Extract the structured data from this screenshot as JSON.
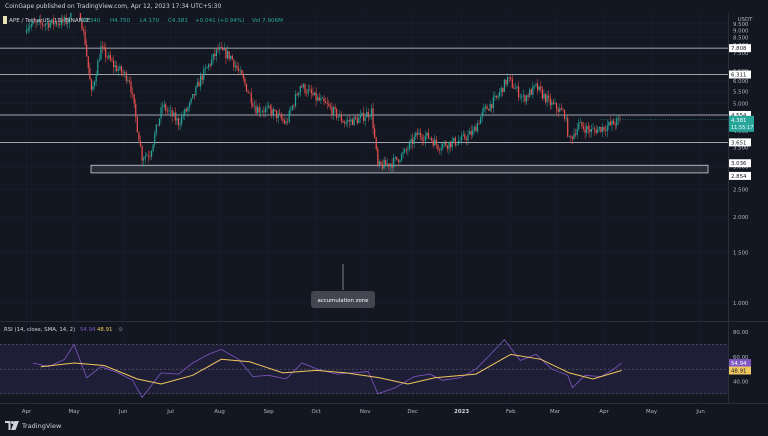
{
  "published_line": "CoinGape published on TradingView.com, Apr 12, 2023 17:34 UTC+5:30",
  "footer_brand": "TradingView",
  "colors": {
    "background": "#131722",
    "up": "#26a69a",
    "down": "#ef5350",
    "level_line": "#d1d4dc",
    "rsi_line": "#7e57c2",
    "rsi_sma": "#f0c75e",
    "rsi_band": "#2a2548"
  },
  "chart_data": [
    {
      "type": "candlestick",
      "symbol_line": {
        "symbol": "APE / TetherUS, 1D, BINANCE",
        "o": "O4.340",
        "h": "H4.750",
        "l": "L4.170",
        "c": "C4.381",
        "chg": "+0.041 (+0.94%)",
        "vol": "Vol 7.906M"
      },
      "currency_label": "USDT",
      "y_scale": "log",
      "ylim": [
        0.9,
        10.2
      ],
      "yticks": [
        "9.500",
        "9.000",
        "8.500",
        "8.000",
        "7.500",
        "6.500",
        "6.000",
        "5.500",
        "5.000",
        "4.500",
        "4.000",
        "3.500",
        "3.000",
        "2.500",
        "2.000",
        "1.500",
        "1.000"
      ],
      "x_axis": [
        "Apr",
        "May",
        "Jun",
        "Jul",
        "Aug",
        "Sep",
        "Oct",
        "Nov",
        "Dec",
        "2023",
        "Feb",
        "Mar",
        "Apr",
        "May",
        "Jun"
      ],
      "horizontal_levels": [
        {
          "label": "7.808",
          "value": 7.808
        },
        {
          "label": "6.311",
          "value": 6.311
        },
        {
          "label": "4.554",
          "value": 4.554
        },
        {
          "label": "3.651",
          "value": 3.651
        }
      ],
      "zone": {
        "top": 3.036,
        "bottom": 2.854,
        "labels": [
          "3.036",
          "2.854"
        ]
      },
      "last_price": {
        "label": "4.381",
        "sub": "11:55:17",
        "value": 4.381
      },
      "annotation": "accumulation zone",
      "closes": [
        {
          "date": "2022-04-01",
          "close": 9.4
        },
        {
          "date": "2022-04-28",
          "close": 9.7
        },
        {
          "date": "2022-04-30",
          "close": 14.5
        },
        {
          "date": "2022-05-08",
          "close": 8.2
        },
        {
          "date": "2022-05-12",
          "close": 5.4
        },
        {
          "date": "2022-05-18",
          "close": 7.8
        },
        {
          "date": "2022-05-26",
          "close": 6.8
        },
        {
          "date": "2022-06-05",
          "close": 6.1
        },
        {
          "date": "2022-06-13",
          "close": 3.25
        },
        {
          "date": "2022-06-18",
          "close": 3.35
        },
        {
          "date": "2022-06-26",
          "close": 4.9
        },
        {
          "date": "2022-07-06",
          "close": 4.3
        },
        {
          "date": "2022-07-13",
          "close": 4.9
        },
        {
          "date": "2022-07-20",
          "close": 6.1
        },
        {
          "date": "2022-07-31",
          "close": 7.7
        },
        {
          "date": "2022-08-08",
          "close": 7.3
        },
        {
          "date": "2022-08-16",
          "close": 6.0
        },
        {
          "date": "2022-08-24",
          "close": 4.8
        },
        {
          "date": "2022-09-03",
          "close": 4.7
        },
        {
          "date": "2022-09-12",
          "close": 4.25
        },
        {
          "date": "2022-09-21",
          "close": 5.8
        },
        {
          "date": "2022-10-01",
          "close": 5.2
        },
        {
          "date": "2022-10-08",
          "close": 4.9
        },
        {
          "date": "2022-10-19",
          "close": 4.3
        },
        {
          "date": "2022-10-28",
          "close": 4.4
        },
        {
          "date": "2022-11-05",
          "close": 4.7
        },
        {
          "date": "2022-11-09",
          "close": 3.0
        },
        {
          "date": "2022-11-18",
          "close": 3.1
        },
        {
          "date": "2022-11-26",
          "close": 3.35
        },
        {
          "date": "2022-12-04",
          "close": 3.9
        },
        {
          "date": "2022-12-12",
          "close": 3.8
        },
        {
          "date": "2022-12-17",
          "close": 3.55
        },
        {
          "date": "2022-12-31",
          "close": 3.7
        },
        {
          "date": "2023-01-08",
          "close": 3.95
        },
        {
          "date": "2023-01-15",
          "close": 4.7
        },
        {
          "date": "2023-01-23",
          "close": 5.2
        },
        {
          "date": "2023-01-30",
          "close": 6.1
        },
        {
          "date": "2023-02-09",
          "close": 5.2
        },
        {
          "date": "2023-02-17",
          "close": 5.7
        },
        {
          "date": "2023-02-26",
          "close": 5.0
        },
        {
          "date": "2023-03-07",
          "close": 4.6
        },
        {
          "date": "2023-03-10",
          "close": 3.7
        },
        {
          "date": "2023-03-16",
          "close": 4.2
        },
        {
          "date": "2023-03-24",
          "close": 4.0
        },
        {
          "date": "2023-04-05",
          "close": 4.2
        },
        {
          "date": "2023-04-12",
          "close": 4.381
        }
      ]
    },
    {
      "type": "line",
      "indicator": "RSI",
      "legend_text": "RSI (14, close, SMA, 14, 2)",
      "rsi_value": "54.94",
      "sma_value": "48.91",
      "ylim": [
        25,
        85
      ],
      "yticks": [
        "80.00",
        "60.00",
        "40.00"
      ],
      "bands": [
        30,
        70
      ],
      "series": [
        {
          "name": "RSI",
          "values": [
            {
              "date": "2022-04-05",
              "v": 55
            },
            {
              "date": "2022-04-15",
              "v": 52
            },
            {
              "date": "2022-04-25",
              "v": 58
            },
            {
              "date": "2022-05-01",
              "v": 70
            },
            {
              "date": "2022-05-09",
              "v": 43
            },
            {
              "date": "2022-05-18",
              "v": 52
            },
            {
              "date": "2022-05-29",
              "v": 47
            },
            {
              "date": "2022-06-07",
              "v": 41
            },
            {
              "date": "2022-06-13",
              "v": 27
            },
            {
              "date": "2022-06-25",
              "v": 47
            },
            {
              "date": "2022-07-06",
              "v": 46
            },
            {
              "date": "2022-07-15",
              "v": 55
            },
            {
              "date": "2022-07-25",
              "v": 62
            },
            {
              "date": "2022-08-02",
              "v": 66
            },
            {
              "date": "2022-08-13",
              "v": 58
            },
            {
              "date": "2022-08-22",
              "v": 44
            },
            {
              "date": "2022-09-01",
              "v": 45
            },
            {
              "date": "2022-09-12",
              "v": 42
            },
            {
              "date": "2022-09-22",
              "v": 55
            },
            {
              "date": "2022-10-02",
              "v": 50
            },
            {
              "date": "2022-10-14",
              "v": 46
            },
            {
              "date": "2022-10-24",
              "v": 47
            },
            {
              "date": "2022-11-03",
              "v": 48
            },
            {
              "date": "2022-11-09",
              "v": 30
            },
            {
              "date": "2022-11-20",
              "v": 35
            },
            {
              "date": "2022-12-02",
              "v": 44
            },
            {
              "date": "2022-12-12",
              "v": 46
            },
            {
              "date": "2022-12-20",
              "v": 41
            },
            {
              "date": "2022-12-31",
              "v": 43
            },
            {
              "date": "2023-01-10",
              "v": 50
            },
            {
              "date": "2023-01-20",
              "v": 63
            },
            {
              "date": "2023-01-28",
              "v": 74
            },
            {
              "date": "2023-02-07",
              "v": 57
            },
            {
              "date": "2023-02-17",
              "v": 62
            },
            {
              "date": "2023-02-27",
              "v": 50
            },
            {
              "date": "2023-03-09",
              "v": 45
            },
            {
              "date": "2023-03-12",
              "v": 35
            },
            {
              "date": "2023-03-20",
              "v": 45
            },
            {
              "date": "2023-03-30",
              "v": 44
            },
            {
              "date": "2023-04-06",
              "v": 49
            },
            {
              "date": "2023-04-12",
              "v": 54.94
            }
          ]
        },
        {
          "name": "RSI-based MA",
          "values": [
            {
              "date": "2022-04-10",
              "v": 52
            },
            {
              "date": "2022-05-01",
              "v": 55
            },
            {
              "date": "2022-05-20",
              "v": 53
            },
            {
              "date": "2022-06-10",
              "v": 42
            },
            {
              "date": "2022-06-25",
              "v": 38
            },
            {
              "date": "2022-07-15",
              "v": 45
            },
            {
              "date": "2022-08-02",
              "v": 58
            },
            {
              "date": "2022-08-20",
              "v": 56
            },
            {
              "date": "2022-09-10",
              "v": 47
            },
            {
              "date": "2022-10-01",
              "v": 49
            },
            {
              "date": "2022-10-20",
              "v": 47
            },
            {
              "date": "2022-11-10",
              "v": 43
            },
            {
              "date": "2022-11-28",
              "v": 38
            },
            {
              "date": "2022-12-15",
              "v": 43
            },
            {
              "date": "2023-01-10",
              "v": 46
            },
            {
              "date": "2023-02-01",
              "v": 62
            },
            {
              "date": "2023-02-20",
              "v": 58
            },
            {
              "date": "2023-03-10",
              "v": 47
            },
            {
              "date": "2023-03-25",
              "v": 42
            },
            {
              "date": "2023-04-12",
              "v": 48.91
            }
          ]
        }
      ]
    }
  ]
}
